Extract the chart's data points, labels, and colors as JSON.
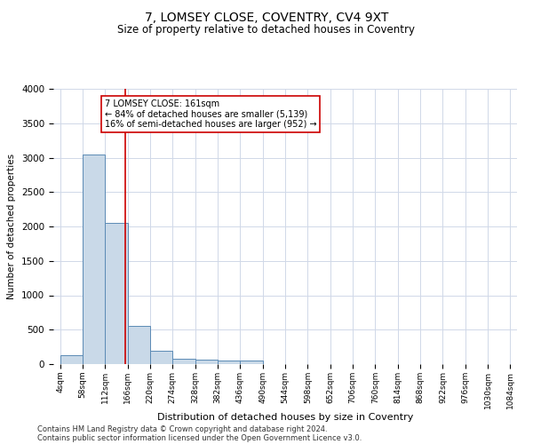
{
  "title": "7, LOMSEY CLOSE, COVENTRY, CV4 9XT",
  "subtitle": "Size of property relative to detached houses in Coventry",
  "xlabel": "Distribution of detached houses by size in Coventry",
  "ylabel": "Number of detached properties",
  "bar_edges": [
    4,
    58,
    112,
    166,
    220,
    274,
    328,
    382,
    436,
    490,
    544,
    598,
    652,
    706,
    760,
    814,
    868,
    922,
    976,
    1030,
    1084
  ],
  "bar_heights": [
    130,
    3050,
    2050,
    560,
    200,
    80,
    60,
    50,
    50,
    0,
    0,
    0,
    0,
    0,
    0,
    0,
    0,
    0,
    0,
    0
  ],
  "bar_color": "#c9d9e8",
  "bar_edge_color": "#5b8ab5",
  "grid_color": "#d0d8e8",
  "background_color": "#ffffff",
  "property_line_x": 161,
  "property_line_color": "#cc0000",
  "annotation_line1": "7 LOMSEY CLOSE: 161sqm",
  "annotation_line2": "← 84% of detached houses are smaller (5,139)",
  "annotation_line3": "16% of semi-detached houses are larger (952) →",
  "annotation_box_color": "#ffffff",
  "annotation_box_edge": "#cc0000",
  "ylim": [
    0,
    4000
  ],
  "yticks": [
    0,
    500,
    1000,
    1500,
    2000,
    2500,
    3000,
    3500,
    4000
  ],
  "footer_line1": "Contains HM Land Registry data © Crown copyright and database right 2024.",
  "footer_line2": "Contains public sector information licensed under the Open Government Licence v3.0.",
  "title_fontsize": 10,
  "subtitle_fontsize": 8.5,
  "ylabel_fontsize": 7.5,
  "xlabel_fontsize": 8,
  "ytick_fontsize": 7.5,
  "xtick_fontsize": 6.5,
  "annotation_fontsize": 7,
  "footer_fontsize": 6
}
